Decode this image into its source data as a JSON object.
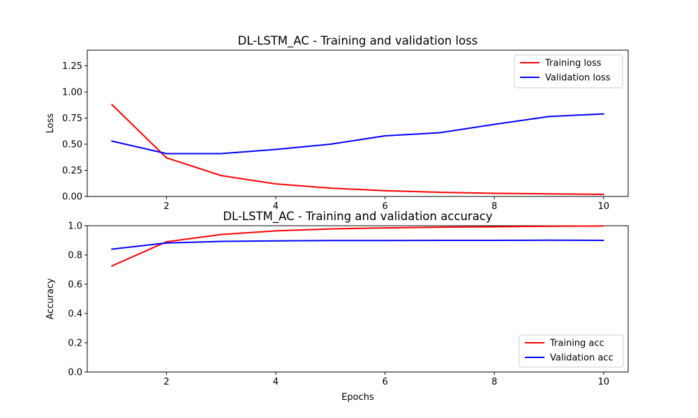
{
  "chart_data": [
    {
      "type": "line",
      "title": "DL-LSTM_AC - Training and validation loss",
      "xlabel": "",
      "ylabel": "Loss",
      "xlim": [
        0.55,
        10.45
      ],
      "ylim": [
        0,
        1.4
      ],
      "xticks": [
        2,
        4,
        6,
        8,
        10
      ],
      "yticks": [
        0.0,
        0.25,
        0.5,
        0.75,
        1.0,
        1.25
      ],
      "ytick_labels": [
        "0.00",
        "0.25",
        "0.50",
        "0.75",
        "1.00",
        "1.25"
      ],
      "grid": false,
      "legend": "top-right",
      "x": [
        1,
        2,
        3,
        4,
        5,
        6,
        7,
        8,
        9,
        10
      ],
      "series": [
        {
          "name": "Training loss",
          "color": "#ff0000",
          "values": [
            0.88,
            0.37,
            0.2,
            0.12,
            0.08,
            0.055,
            0.04,
            0.03,
            0.025,
            0.02
          ]
        },
        {
          "name": "Validation loss",
          "color": "#0000ff",
          "values": [
            0.53,
            0.41,
            0.41,
            0.45,
            0.5,
            0.58,
            0.61,
            0.69,
            0.765,
            0.79
          ]
        }
      ]
    },
    {
      "type": "line",
      "title": "DL-LSTM_AC - Training and validation accuracy",
      "xlabel": "Epochs",
      "ylabel": "Accuracy",
      "xlim": [
        0.55,
        10.45
      ],
      "ylim": [
        0,
        1.0
      ],
      "xticks": [
        2,
        4,
        6,
        8,
        10
      ],
      "yticks": [
        0.0,
        0.2,
        0.4,
        0.6,
        0.8,
        1.0
      ],
      "ytick_labels": [
        "0.0",
        "0.2",
        "0.4",
        "0.6",
        "0.8",
        "1.0"
      ],
      "grid": false,
      "legend": "bottom-right",
      "x": [
        1,
        2,
        3,
        4,
        5,
        6,
        7,
        8,
        9,
        10
      ],
      "series": [
        {
          "name": "Training acc",
          "color": "#ff0000",
          "values": [
            0.725,
            0.89,
            0.94,
            0.965,
            0.978,
            0.985,
            0.99,
            0.993,
            0.996,
            0.998
          ]
        },
        {
          "name": "Validation acc",
          "color": "#0000ff",
          "values": [
            0.84,
            0.882,
            0.893,
            0.896,
            0.899,
            0.899,
            0.9,
            0.9,
            0.901,
            0.9
          ]
        }
      ]
    }
  ]
}
